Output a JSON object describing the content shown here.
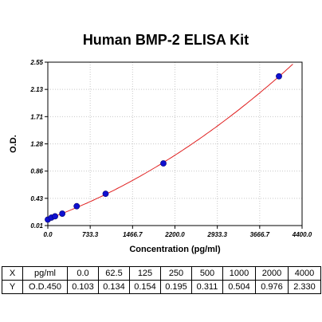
{
  "chart_data": {
    "type": "scatter",
    "title": "Human BMP-2 ELISA Kit",
    "xlabel": "Concentration (pg/ml)",
    "ylabel": "O.D.",
    "xlim": [
      0,
      4400
    ],
    "ylim": [
      0.01,
      2.55
    ],
    "x_ticks": [
      "0.0",
      "733.3",
      "1466.7",
      "2200.0",
      "2933.3",
      "3666.7",
      "4400.0"
    ],
    "y_ticks": [
      "0.01",
      "0.43",
      "0.86",
      "1.28",
      "1.71",
      "2.13",
      "2.55"
    ],
    "x": [
      0,
      62.5,
      125,
      250,
      500,
      1000,
      2000,
      4000
    ],
    "y": [
      0.103,
      0.134,
      0.154,
      0.195,
      0.311,
      0.504,
      0.976,
      2.33
    ],
    "fit_curve": true,
    "grid": true,
    "point_color": "#1010d0",
    "curve_color": "#e02020"
  },
  "table": {
    "rows": [
      [
        "X",
        "pg/ml",
        "0.0",
        "62.5",
        "125",
        "250",
        "500",
        "1000",
        "2000",
        "4000"
      ],
      [
        "Y",
        "O.D.450",
        "0.103",
        "0.134",
        "0.154",
        "0.195",
        "0.311",
        "0.504",
        "0.976",
        "2.330"
      ]
    ]
  }
}
